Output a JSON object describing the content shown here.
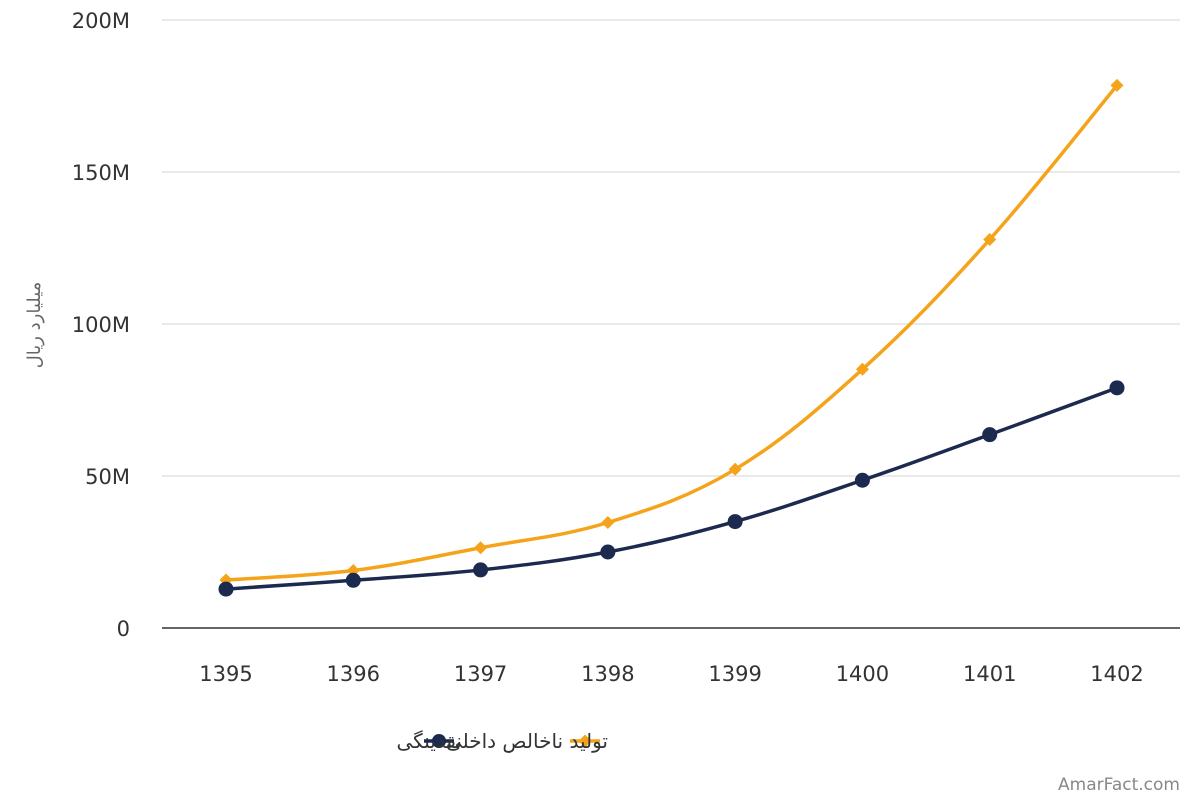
{
  "chart_data": {
    "type": "line",
    "title": "",
    "xlabel": "",
    "ylabel": "میلیارد ریال",
    "categories": [
      "1395",
      "1396",
      "1397",
      "1398",
      "1399",
      "1400",
      "1401",
      "1402"
    ],
    "ylim": [
      0,
      200000000
    ],
    "yticks": [
      0,
      50000000,
      100000000,
      150000000,
      200000000
    ],
    "ytick_labels": [
      "0",
      "50M",
      "100M",
      "150M",
      "200M"
    ],
    "grid": true,
    "legend_position": "bottom",
    "series": [
      {
        "name": "نقدینگی",
        "color": "#1b2a4e",
        "marker": "circle",
        "values": [
          12800000,
          15700000,
          19100000,
          25000000,
          35000000,
          48600000,
          63600000,
          79000000
        ]
      },
      {
        "name": "تولید ناخالص داخلی",
        "color": "#f5a31a",
        "marker": "diamond",
        "values": [
          15800000,
          18900000,
          26400000,
          34700000,
          52200000,
          85100000,
          127800000,
          178500000
        ]
      }
    ]
  },
  "watermark": "AmarFact.com"
}
